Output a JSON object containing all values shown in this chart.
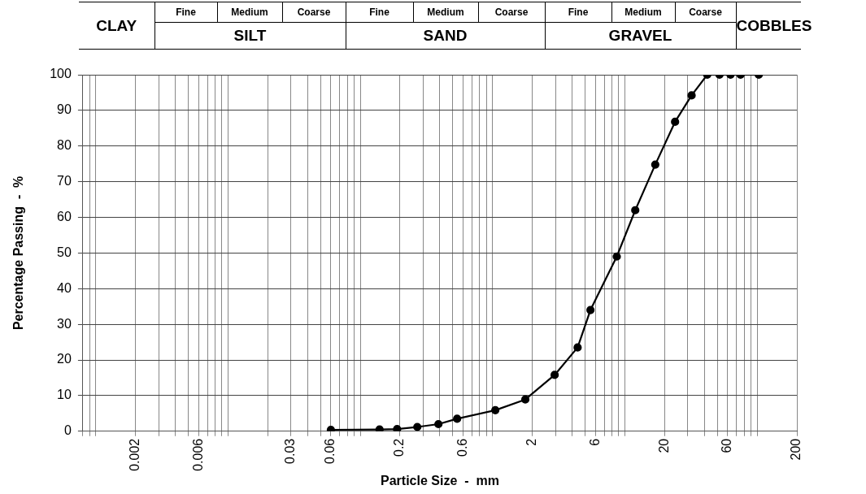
{
  "chart_data": {
    "type": "line",
    "xlabel": "Particle Size  -  mm",
    "ylabel": "Percentage Passing  -  %",
    "annotations": [
      "CLAY",
      "Fine",
      "Medium",
      "Coarse",
      "Fine",
      "Medium",
      "Coarse",
      "Fine",
      "Medium",
      "Coarse",
      "COBBLES",
      "SILT",
      "SAND",
      "GRAVEL"
    ],
    "x": [
      0.06,
      0.14,
      0.19,
      0.27,
      0.39,
      0.54,
      1.05,
      1.77,
      2.95,
      4.4,
      5.5,
      8.7,
      12,
      17,
      24,
      32,
      42,
      52,
      63,
      75,
      103
    ],
    "series": [
      {
        "color": "#000000",
        "values": [
          0.4,
          0.5,
          0.6,
          1.2,
          2.0,
          3.5,
          5.9,
          8.9,
          15.8,
          23.5,
          34,
          49,
          62,
          74.8,
          86.8,
          94.2,
          100,
          100,
          100,
          100,
          100
        ]
      }
    ],
    "log": "x",
    "marker": "circle",
    "grid": true,
    "xlim": [
      0.0008,
      200
    ],
    "ylim": [
      0,
      100
    ],
    "yticks": [
      0,
      10,
      20,
      30,
      40,
      50,
      60,
      70,
      80,
      90,
      100
    ],
    "xticks": [
      {
        "value": 0.0008,
        "label": null
      },
      {
        "value": 0.0009,
        "label": null
      },
      {
        "value": 0.001,
        "label": null
      },
      0.002,
      {
        "value": 0.003,
        "label": null
      },
      {
        "value": 0.004,
        "label": null
      },
      {
        "value": 0.005,
        "label": null
      },
      0.006,
      {
        "value": 0.007,
        "label": null
      },
      {
        "value": 0.008,
        "label": null
      },
      {
        "value": 0.009,
        "label": null
      },
      {
        "value": 0.01,
        "label": null
      },
      {
        "value": 0.02,
        "label": null
      },
      0.03,
      {
        "value": 0.04,
        "label": null
      },
      {
        "value": 0.05,
        "label": null
      },
      0.06,
      {
        "value": 0.07,
        "label": null
      },
      {
        "value": 0.08,
        "label": null
      },
      {
        "value": 0.09,
        "label": null
      },
      {
        "value": 0.1,
        "label": null
      },
      0.2,
      {
        "value": 0.3,
        "label": null
      },
      {
        "value": 0.4,
        "label": null
      },
      {
        "value": 0.5,
        "label": null
      },
      0.6,
      {
        "value": 0.7,
        "label": null
      },
      {
        "value": 0.8,
        "label": null
      },
      {
        "value": 0.9,
        "label": null
      },
      {
        "value": 1,
        "label": null
      },
      2,
      {
        "value": 3,
        "label": null
      },
      {
        "value": 4,
        "label": null
      },
      {
        "value": 5,
        "label": null
      },
      6,
      {
        "value": 7,
        "label": null
      },
      {
        "value": 8,
        "label": null
      },
      {
        "value": 9,
        "label": null
      },
      {
        "value": 10,
        "label": null
      },
      20,
      {
        "value": 30,
        "label": null
      },
      {
        "value": 40,
        "label": null
      },
      {
        "value": 50,
        "label": null
      },
      60,
      {
        "value": 70,
        "label": null
      },
      {
        "value": 80,
        "label": null
      },
      {
        "value": 90,
        "label": null
      },
      {
        "value": 100,
        "label": null
      },
      200
    ]
  }
}
